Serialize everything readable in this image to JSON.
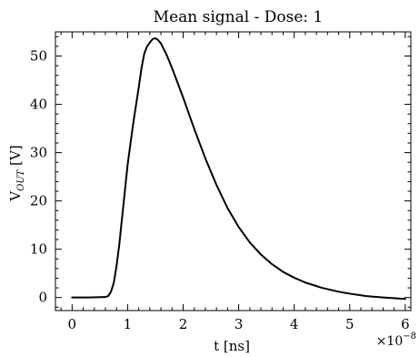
{
  "chart_data": {
    "type": "line",
    "title": "Mean signal - Dose: 1",
    "xlabel": "t [ns]",
    "ylabel_main": "V",
    "ylabel_sub": "OUT",
    "ylabel_unit": " [V]",
    "x_multiplier_base": "×10",
    "x_multiplier_exp": "−8",
    "xlim": [
      -0.3,
      6.1
    ],
    "ylim": [
      -2.7,
      55.0
    ],
    "xticks": [
      0,
      1,
      2,
      3,
      4,
      5,
      6
    ],
    "yticks": [
      0,
      10,
      20,
      30,
      40,
      50
    ],
    "grid": false,
    "series": [
      {
        "color": "#000000",
        "x": [
          0.0,
          0.3,
          0.6,
          0.65,
          0.7,
          0.75,
          0.8,
          0.85,
          0.9,
          0.95,
          1.0,
          1.1,
          1.2,
          1.25,
          1.3,
          1.35,
          1.4,
          1.45,
          1.5,
          1.55,
          1.6,
          1.7,
          1.8,
          2.0,
          2.2,
          2.4,
          2.6,
          2.8,
          3.0,
          3.2,
          3.4,
          3.6,
          3.8,
          4.0,
          4.2,
          4.5,
          4.8,
          5.0,
          5.3,
          5.6,
          6.0
        ],
        "y": [
          0.0,
          0.0,
          0.1,
          0.3,
          1.2,
          3.0,
          6.5,
          11.0,
          16.5,
          22.0,
          27.5,
          36.0,
          43.5,
          47.5,
          50.5,
          52.0,
          52.8,
          53.5,
          53.7,
          53.3,
          52.6,
          50.3,
          47.5,
          41.4,
          34.9,
          28.8,
          23.3,
          18.5,
          14.6,
          11.4,
          8.9,
          6.9,
          5.3,
          4.1,
          3.1,
          2.0,
          1.2,
          0.8,
          0.3,
          0.0,
          -0.3
        ]
      }
    ]
  }
}
